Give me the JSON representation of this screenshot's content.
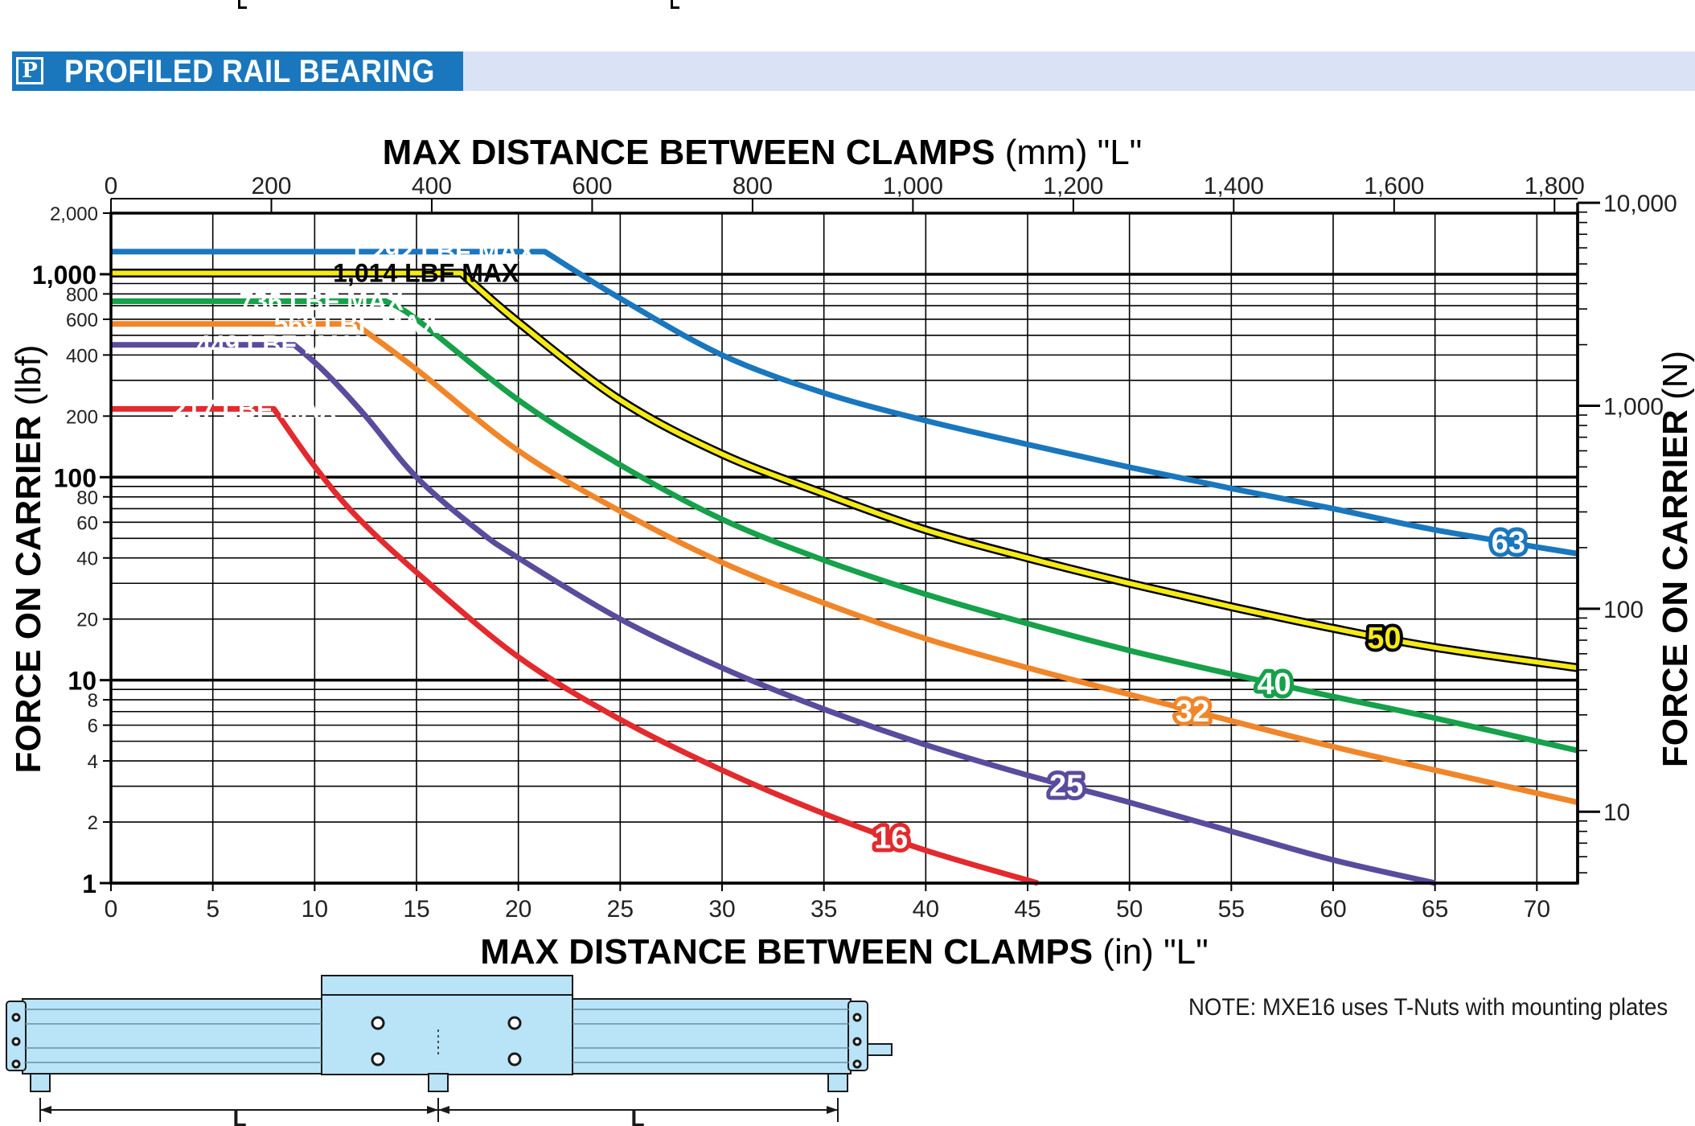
{
  "header": {
    "icon_letter": "P",
    "title": "PROFILED RAIL BEARING",
    "tab_color": "#1a77bd",
    "band_color": "#d9e3f5"
  },
  "note": "NOTE: MXE16 uses T-Nuts with mounting plates",
  "diagram": {
    "dimension_left": "L",
    "dimension_right": "L",
    "body_color": "#b9e3f7",
    "icon": "rail-carriage-diagram"
  },
  "chart_data": {
    "type": "line",
    "title_top_bold": "MAX DISTANCE BETWEEN CLAMPS",
    "title_top_unit": " (mm) \"L\"",
    "title_bottom_bold": "MAX DISTANCE BETWEEN CLAMPS",
    "title_bottom_unit": " (in) \"L\"",
    "ylabel_left_bold": "FORCE ON CARRIER",
    "ylabel_left_unit": " (lbf)",
    "ylabel_right_bold": "FORCE ON CARRIER",
    "ylabel_right_unit": " (N)",
    "x_in_range": [
      0,
      72
    ],
    "x_mm_range": [
      0,
      1828.8
    ],
    "y_lbf_range": [
      1,
      2000
    ],
    "y_scale": "log",
    "grid": true,
    "x_in_ticks": [
      "0",
      "5",
      "10",
      "15",
      "20",
      "25",
      "30",
      "35",
      "40",
      "45",
      "50",
      "55",
      "60",
      "65",
      "70"
    ],
    "x_mm_ticks": [
      "0",
      "200",
      "400",
      "600",
      "800",
      "1,000",
      "1,200",
      "1,400",
      "1,600",
      "1,800"
    ],
    "y_lbf_major_ticks": [
      "1",
      "10",
      "100",
      "1,000"
    ],
    "y_lbf_minor_ticks": [
      "2",
      "4",
      "6",
      "8",
      "20",
      "40",
      "60",
      "80",
      "200",
      "400",
      "600",
      "800",
      "2,000"
    ],
    "y_n_ticks": [
      "10",
      "100",
      "1,000",
      "10,000"
    ],
    "series": [
      {
        "name": "16",
        "max_label": "217 LBF MAX",
        "color": "#e32a2e",
        "points": [
          [
            0,
            217
          ],
          [
            8,
            217
          ],
          [
            10,
            113
          ],
          [
            12,
            65
          ],
          [
            15,
            34
          ],
          [
            20,
            13
          ],
          [
            25,
            6.4
          ],
          [
            30,
            3.6
          ],
          [
            35,
            2.2
          ],
          [
            40,
            1.45
          ],
          [
            45.5,
            1
          ]
        ]
      },
      {
        "name": "25",
        "max_label": "449 LBF MAX",
        "color": "#5b4b9d",
        "points": [
          [
            0,
            449
          ],
          [
            9,
            449
          ],
          [
            10.5,
            330
          ],
          [
            12.5,
            200
          ],
          [
            15,
            100
          ],
          [
            18,
            55
          ],
          [
            20,
            40
          ],
          [
            25,
            20
          ],
          [
            30,
            11.5
          ],
          [
            35,
            7.2
          ],
          [
            40,
            4.8
          ],
          [
            45,
            3.4
          ],
          [
            50,
            2.5
          ],
          [
            55,
            1.8
          ],
          [
            60,
            1.3
          ],
          [
            65,
            1
          ]
        ]
      },
      {
        "name": "32",
        "max_label": "569 LBF MAX",
        "color": "#f0862a",
        "points": [
          [
            0,
            569
          ],
          [
            12,
            569
          ],
          [
            15,
            340
          ],
          [
            20,
            135
          ],
          [
            25,
            68
          ],
          [
            30,
            38
          ],
          [
            35,
            24
          ],
          [
            40,
            16
          ],
          [
            45,
            11.5
          ],
          [
            50,
            8.5
          ],
          [
            55,
            6.3
          ],
          [
            60,
            4.7
          ],
          [
            65,
            3.6
          ],
          [
            72,
            2.5
          ]
        ]
      },
      {
        "name": "40",
        "max_label": "736 LBF MAX",
        "color": "#16a14a",
        "points": [
          [
            0,
            736
          ],
          [
            13.5,
            736
          ],
          [
            15,
            600
          ],
          [
            20,
            240
          ],
          [
            25,
            115
          ],
          [
            30,
            62
          ],
          [
            35,
            39
          ],
          [
            40,
            26.5
          ],
          [
            45,
            19
          ],
          [
            50,
            14
          ],
          [
            55,
            10.7
          ],
          [
            60,
            8.3
          ],
          [
            65,
            6.5
          ],
          [
            72,
            4.5
          ]
        ]
      },
      {
        "name": "50",
        "max_label": "1,014 LBF MAX",
        "color": "#f5ea14",
        "points": [
          [
            0,
            1014
          ],
          [
            17.2,
            1014
          ],
          [
            20,
            580
          ],
          [
            25,
            240
          ],
          [
            30,
            130
          ],
          [
            35,
            83
          ],
          [
            40,
            55
          ],
          [
            45,
            40
          ],
          [
            50,
            30
          ],
          [
            55,
            23
          ],
          [
            60,
            18
          ],
          [
            65,
            14.5
          ],
          [
            72,
            11.5
          ]
        ]
      },
      {
        "name": "63",
        "max_label": "1,292 LBF MAX",
        "color": "#1a77bd",
        "points": [
          [
            0,
            1292
          ],
          [
            21.3,
            1292
          ],
          [
            25,
            760
          ],
          [
            30,
            400
          ],
          [
            35,
            260
          ],
          [
            40,
            190
          ],
          [
            45,
            145
          ],
          [
            50,
            112
          ],
          [
            55,
            88
          ],
          [
            60,
            70
          ],
          [
            65,
            55
          ],
          [
            72,
            42
          ]
        ]
      }
    ]
  }
}
